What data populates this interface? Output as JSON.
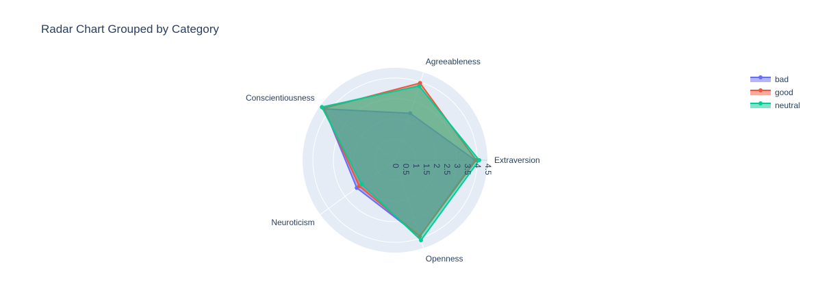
{
  "chart_data": {
    "type": "radar",
    "title": "Radar Chart Grouped by Category",
    "categories": [
      "Extraversion",
      "Agreeableness",
      "Conscientiousness",
      "Neuroticism",
      "Openness"
    ],
    "radial_ticks": [
      "0",
      "0.5",
      "1",
      "1.5",
      "2",
      "2.5",
      "3",
      "3.5",
      "4",
      "4.5"
    ],
    "radial_range": [
      0,
      4.5
    ],
    "grid": true,
    "legend_position": "top-right",
    "series": [
      {
        "name": "bad",
        "values": [
          3.9,
          2.4,
          4.25,
          2.3,
          3.9
        ],
        "color": "#636efa"
      },
      {
        "name": "good",
        "values": [
          3.95,
          3.95,
          4.3,
          2.15,
          3.9
        ],
        "color": "#ef553b"
      },
      {
        "name": "neutral",
        "values": [
          4.1,
          3.8,
          4.4,
          2.0,
          4.1
        ],
        "color": "#00cc96"
      }
    ]
  },
  "colors": {
    "polar_background": "#e5ecf6",
    "grid_line": "#ffffff",
    "text": "#2a3f5f"
  }
}
